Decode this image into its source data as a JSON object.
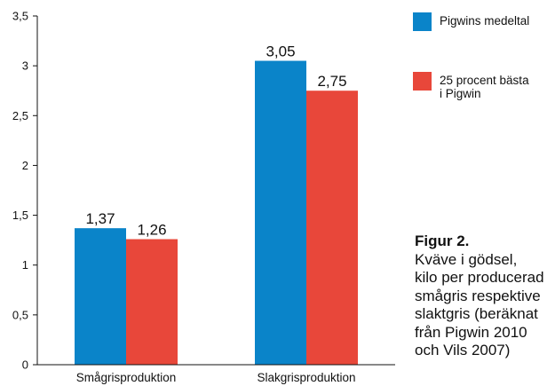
{
  "chart_data": {
    "type": "bar",
    "categories": [
      "Smågrisproduktion",
      "Slakgrisproduktion"
    ],
    "series": [
      {
        "name": "Pigwins medeltal",
        "values": [
          1.37,
          3.05
        ],
        "labels": [
          "1,37",
          "3,05"
        ],
        "color": "#0a84c9"
      },
      {
        "name": "25 procent bästa i Pigwin",
        "values": [
          1.26,
          2.75
        ],
        "labels": [
          "1,26",
          "2,75"
        ],
        "color": "#e8473a"
      }
    ],
    "ylim": [
      0,
      3.5
    ],
    "yticks": [
      0,
      0.5,
      1,
      1.5,
      2,
      2.5,
      3,
      3.5
    ],
    "ytick_labels": [
      "0",
      "0,5",
      "1",
      "1,5",
      "2",
      "2,5",
      "3",
      "3,5"
    ],
    "grid": false,
    "legend_position": "right"
  },
  "legend": {
    "items": [
      {
        "line1": "Pigwins medeltal",
        "line2": "",
        "color": "#0a84c9"
      },
      {
        "line1": "25 procent bästa",
        "line2": "i Pigwin",
        "color": "#e8473a"
      }
    ]
  },
  "caption": {
    "title": "Figur 2.",
    "lines": [
      "Kväve i gödsel,",
      "kilo per producerad",
      "smågris respektive",
      "slaktgris (beräknat",
      "från Pigwin 2010",
      "och Vils 2007)"
    ]
  }
}
